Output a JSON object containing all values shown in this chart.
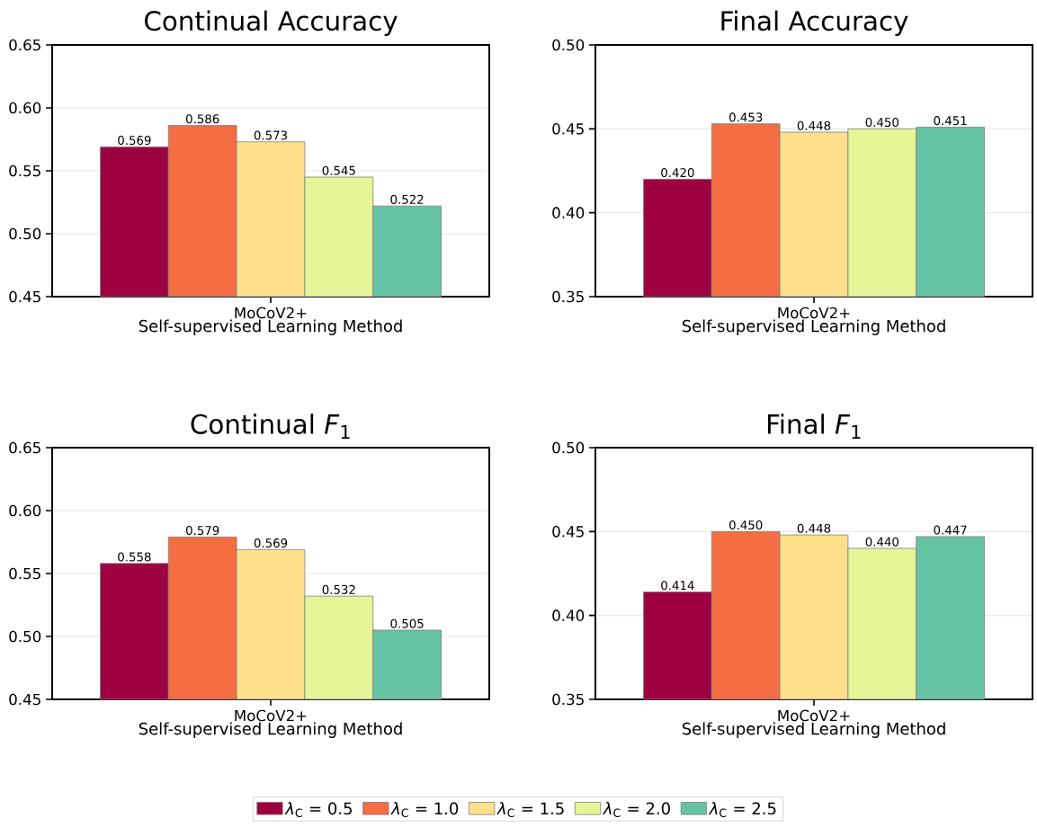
{
  "chart_data": [
    {
      "type": "bar",
      "title": "Continual Accuracy",
      "xlabel": "Self-supervised Learning Method",
      "categories": [
        "MoCoV2+"
      ],
      "ylim": [
        0.45,
        0.65
      ],
      "yticks": [
        0.45,
        {
          "value": 0.5,
          "label": "0.50"
        },
        0.55,
        {
          "value": 0.6,
          "label": "0.60"
        },
        0.65
      ],
      "grid": "y",
      "series": [
        {
          "color": "#9e0142",
          "values": [
            0.569
          ],
          "value_labels": [
            "0.569"
          ]
        },
        {
          "color": "#f46d43",
          "values": [
            0.586
          ],
          "value_labels": [
            "0.586"
          ]
        },
        {
          "color": "#fee08b",
          "values": [
            0.573
          ],
          "value_labels": [
            "0.573"
          ]
        },
        {
          "color": "#e6f598",
          "values": [
            0.545
          ],
          "value_labels": [
            "0.545"
          ]
        },
        {
          "color": "#66c2a5",
          "values": [
            0.522
          ],
          "value_labels": [
            "0.522"
          ]
        }
      ]
    },
    {
      "type": "bar",
      "title": "Final Accuracy",
      "xlabel": "Self-supervised Learning Method",
      "categories": [
        "MoCoV2+"
      ],
      "ylim": [
        0.35,
        0.5
      ],
      "yticks": [
        0.35,
        {
          "value": 0.4,
          "label": "0.40"
        },
        0.45,
        {
          "value": 0.5,
          "label": "0.50"
        }
      ],
      "grid": "y",
      "series": [
        {
          "color": "#9e0142",
          "values": [
            0.42
          ],
          "value_labels": [
            "0.420"
          ]
        },
        {
          "color": "#f46d43",
          "values": [
            0.453
          ],
          "value_labels": [
            "0.453"
          ]
        },
        {
          "color": "#fee08b",
          "values": [
            0.448
          ],
          "value_labels": [
            "0.448"
          ]
        },
        {
          "color": "#e6f598",
          "values": [
            0.45
          ],
          "value_labels": [
            "0.450"
          ]
        },
        {
          "color": "#66c2a5",
          "values": [
            0.451
          ],
          "value_labels": [
            "0.451"
          ]
        }
      ]
    },
    {
      "type": "bar",
      "title": "Continual *F*$_{1}$",
      "xlabel": "Self-supervised Learning Method",
      "categories": [
        "MoCoV2+"
      ],
      "ylim": [
        0.45,
        0.65
      ],
      "yticks": [
        0.45,
        {
          "value": 0.5,
          "label": "0.50"
        },
        0.55,
        {
          "value": 0.6,
          "label": "0.60"
        },
        0.65
      ],
      "grid": "y",
      "series": [
        {
          "color": "#9e0142",
          "values": [
            0.558
          ],
          "value_labels": [
            "0.558"
          ]
        },
        {
          "color": "#f46d43",
          "values": [
            0.579
          ],
          "value_labels": [
            "0.579"
          ]
        },
        {
          "color": "#fee08b",
          "values": [
            0.569
          ],
          "value_labels": [
            "0.569"
          ]
        },
        {
          "color": "#e6f598",
          "values": [
            0.532
          ],
          "value_labels": [
            "0.532"
          ]
        },
        {
          "color": "#66c2a5",
          "values": [
            0.505
          ],
          "value_labels": [
            "0.505"
          ]
        }
      ]
    },
    {
      "type": "bar",
      "title": "Final *F*$_{1}$",
      "xlabel": "Self-supervised Learning Method",
      "categories": [
        "MoCoV2+"
      ],
      "ylim": [
        0.35,
        0.5
      ],
      "yticks": [
        0.35,
        {
          "value": 0.4,
          "label": "0.40"
        },
        0.45,
        {
          "value": 0.5,
          "label": "0.50"
        }
      ],
      "grid": "y",
      "legend": "bottom",
      "series": [
        {
          "name": "*λ*$_{C}$ = 0.5",
          "color": "#9e0142",
          "values": [
            0.414
          ],
          "value_labels": [
            "0.414"
          ]
        },
        {
          "name": "*λ*$_{C}$ = 1.0",
          "color": "#f46d43",
          "values": [
            0.45
          ],
          "value_labels": [
            "0.450"
          ]
        },
        {
          "name": "*λ*$_{C}$ = 1.5",
          "color": "#fee08b",
          "values": [
            0.448
          ],
          "value_labels": [
            "0.448"
          ]
        },
        {
          "name": "*λ*$_{C}$ = 2.0",
          "color": "#e6f598",
          "values": [
            0.44
          ],
          "value_labels": [
            "0.440"
          ]
        },
        {
          "name": "*λ*$_{C}$ = 2.5",
          "color": "#66c2a5",
          "values": [
            0.447
          ],
          "value_labels": [
            "0.447"
          ]
        }
      ]
    }
  ]
}
